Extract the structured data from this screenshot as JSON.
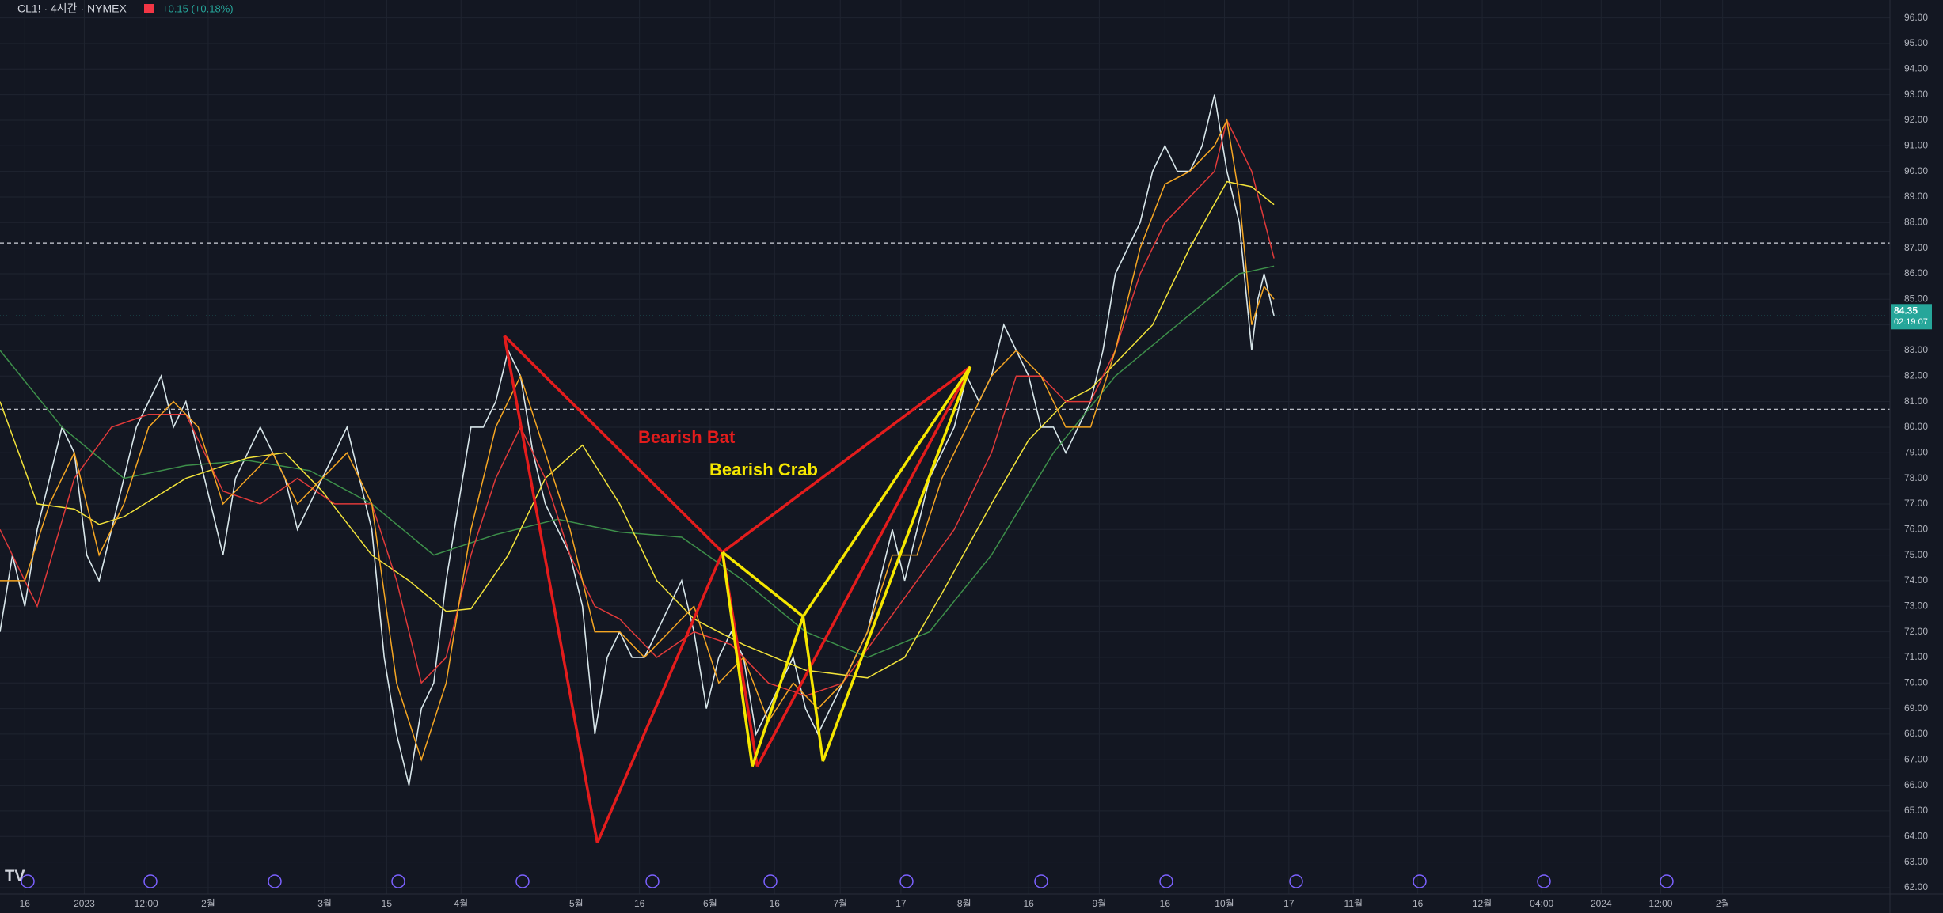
{
  "chart_data": {
    "type": "line",
    "header": {
      "symbol": "CL1! · 4시간 · NYMEX",
      "change": "+0.15 (+0.18%)"
    },
    "last_price": {
      "value": 84.35,
      "label": "84.35",
      "countdown": "02:19:07"
    },
    "ylim": [
      61.75,
      96.7
    ],
    "xlim": [
      0,
      1525
    ],
    "yticks": [
      {
        "value": 62,
        "label": "62.00"
      },
      {
        "value": 63,
        "label": "63.00"
      },
      {
        "value": 64,
        "label": "64.00"
      },
      {
        "value": 65,
        "label": "65.00"
      },
      {
        "value": 66,
        "label": "66.00"
      },
      {
        "value": 67,
        "label": "67.00"
      },
      {
        "value": 68,
        "label": "68.00"
      },
      {
        "value": 69,
        "label": "69.00"
      },
      {
        "value": 70,
        "label": "70.00"
      },
      {
        "value": 71,
        "label": "71.00"
      },
      {
        "value": 72,
        "label": "72.00"
      },
      {
        "value": 73,
        "label": "73.00"
      },
      {
        "value": 74,
        "label": "74.00"
      },
      {
        "value": 75,
        "label": "75.00"
      },
      {
        "value": 76,
        "label": "76.00"
      },
      {
        "value": 77,
        "label": "77.00"
      },
      {
        "value": 78,
        "label": "78.00"
      },
      {
        "value": 79,
        "label": "79.00"
      },
      {
        "value": 80,
        "label": "80.00"
      },
      {
        "value": 81,
        "label": "81.00"
      },
      {
        "value": 82,
        "label": "82.00"
      },
      {
        "value": 83,
        "label": "83.00"
      },
      {
        "value": 84,
        "label": "84.00"
      },
      {
        "value": 85,
        "label": "85.00"
      },
      {
        "value": 86,
        "label": "86.00"
      },
      {
        "value": 87,
        "label": "87.00"
      },
      {
        "value": 88,
        "label": "88.00"
      },
      {
        "value": 89,
        "label": "89.00"
      },
      {
        "value": 90,
        "label": "90.00"
      },
      {
        "value": 91,
        "label": "91.00"
      },
      {
        "value": 92,
        "label": "92.00"
      },
      {
        "value": 93,
        "label": "93.00"
      },
      {
        "value": 94,
        "label": "94.00"
      },
      {
        "value": 95,
        "label": "95.00"
      },
      {
        "value": 96,
        "label": "96.00"
      }
    ],
    "xticks": [
      {
        "value": 20,
        "label": "16"
      },
      {
        "value": 68,
        "label": "2023"
      },
      {
        "value": 118,
        "label": "12:00"
      },
      {
        "value": 168,
        "label": "2월"
      },
      {
        "value": 262,
        "label": "3월"
      },
      {
        "value": 312,
        "label": "15"
      },
      {
        "value": 372,
        "label": "4월"
      },
      {
        "value": 465,
        "label": "5월"
      },
      {
        "value": 516,
        "label": "16"
      },
      {
        "value": 573,
        "label": "6월"
      },
      {
        "value": 625,
        "label": "16"
      },
      {
        "value": 678,
        "label": "7월"
      },
      {
        "value": 727,
        "label": "17"
      },
      {
        "value": 778,
        "label": "8월"
      },
      {
        "value": 830,
        "label": "16"
      },
      {
        "value": 887,
        "label": "9월"
      },
      {
        "value": 940,
        "label": "16"
      },
      {
        "value": 988,
        "label": "10월"
      },
      {
        "value": 1040,
        "label": "17"
      },
      {
        "value": 1092,
        "label": "11월"
      },
      {
        "value": 1144,
        "label": "16"
      },
      {
        "value": 1196,
        "label": "12월"
      },
      {
        "value": 1244,
        "label": "04:00"
      },
      {
        "value": 1292,
        "label": "2024"
      },
      {
        "value": 1340,
        "label": "12:00"
      },
      {
        "value": 1390,
        "label": "2월"
      }
    ],
    "hlines": [
      87.2,
      80.7
    ],
    "grid": true,
    "series": [
      {
        "name": "price",
        "color": "#d8e6ea",
        "x": [
          0,
          10,
          20,
          30,
          40,
          50,
          60,
          70,
          80,
          90,
          100,
          110,
          120,
          130,
          140,
          150,
          160,
          170,
          180,
          190,
          200,
          210,
          220,
          230,
          240,
          250,
          260,
          270,
          280,
          290,
          300,
          310,
          320,
          330,
          340,
          350,
          360,
          370,
          380,
          390,
          400,
          410,
          420,
          430,
          440,
          450,
          460,
          470,
          480,
          490,
          500,
          510,
          520,
          530,
          540,
          550,
          560,
          570,
          580,
          590,
          600,
          610,
          620,
          630,
          640,
          650,
          660,
          670,
          680,
          690,
          700,
          710,
          720,
          730,
          740,
          750,
          760,
          770,
          780,
          790,
          800,
          810,
          820,
          830,
          840,
          850,
          860,
          870,
          880,
          890,
          900,
          910,
          920,
          930,
          940,
          950,
          960,
          970,
          980,
          990,
          1000,
          1010,
          1015,
          1020,
          1028
        ],
        "values": [
          72,
          75,
          73,
          76,
          78,
          80,
          79,
          75,
          74,
          76,
          78,
          80,
          81,
          82,
          80,
          81,
          79,
          77,
          75,
          78,
          79,
          80,
          79,
          78,
          76,
          77,
          78,
          79,
          80,
          78,
          76,
          71,
          68,
          66,
          69,
          70,
          74,
          77,
          80,
          80,
          81,
          83,
          82,
          79,
          77,
          76,
          75,
          73,
          68,
          71,
          72,
          71,
          71,
          72,
          73,
          74,
          72,
          69,
          71,
          72,
          71,
          68,
          69,
          70,
          71,
          69,
          68,
          69,
          70,
          71,
          72,
          74,
          76,
          74,
          76,
          78,
          79,
          80,
          82,
          81,
          82,
          84,
          83,
          82,
          80,
          80,
          79,
          80,
          81,
          83,
          86,
          87,
          88,
          90,
          91,
          90,
          90,
          91,
          93,
          90,
          88,
          83,
          85,
          86,
          84.35
        ]
      },
      {
        "name": "ma-slow",
        "color": "#3d8f4a",
        "x": [
          0,
          50,
          100,
          150,
          200,
          250,
          300,
          350,
          400,
          450,
          500,
          550,
          600,
          650,
          700,
          750,
          800,
          850,
          900,
          950,
          1000,
          1028
        ],
        "values": [
          83,
          80,
          78,
          78.5,
          78.7,
          78.3,
          77,
          75,
          75.8,
          76.4,
          75.9,
          75.7,
          74,
          72,
          71,
          72,
          75,
          79,
          82,
          84,
          86,
          86.3
        ]
      },
      {
        "name": "ma-mid",
        "color": "#f2e33a",
        "x": [
          0,
          30,
          60,
          80,
          100,
          150,
          200,
          230,
          260,
          300,
          330,
          360,
          380,
          410,
          440,
          470,
          500,
          530,
          560,
          600,
          650,
          700,
          730,
          760,
          800,
          830,
          860,
          880,
          900,
          930,
          960,
          990,
          1010,
          1028
        ],
        "values": [
          81,
          77,
          76.8,
          76.2,
          76.5,
          78,
          78.8,
          79,
          77.5,
          75,
          74,
          72.8,
          72.9,
          75,
          78,
          79.3,
          77,
          74,
          72.5,
          71.5,
          70.5,
          70.2,
          71,
          73.5,
          77,
          79.5,
          81,
          81.5,
          82.5,
          84,
          87,
          89.6,
          89.4,
          88.7
        ]
      },
      {
        "name": "ma-fast",
        "color": "#e03a3a",
        "x": [
          0,
          30,
          60,
          90,
          120,
          150,
          180,
          210,
          240,
          270,
          300,
          320,
          340,
          360,
          380,
          400,
          420,
          440,
          460,
          480,
          500,
          530,
          560,
          590,
          620,
          650,
          680,
          710,
          740,
          770,
          800,
          820,
          840,
          860,
          880,
          900,
          920,
          940,
          960,
          980,
          990,
          1010,
          1028
        ],
        "values": [
          76,
          73,
          78,
          80,
          80.5,
          80.5,
          77.5,
          77,
          78,
          77,
          77,
          74,
          70,
          71,
          75,
          78,
          80,
          78,
          75,
          73,
          72.5,
          71,
          72,
          71.5,
          70,
          69.5,
          70,
          72,
          74,
          76,
          79,
          82,
          82,
          81,
          81,
          83,
          86,
          88,
          89,
          90,
          92,
          90,
          86.6
        ]
      },
      {
        "name": "ma-short",
        "color": "#f5a623",
        "x": [
          0,
          20,
          40,
          60,
          80,
          100,
          120,
          140,
          160,
          180,
          200,
          220,
          240,
          260,
          280,
          300,
          320,
          340,
          360,
          380,
          400,
          420,
          440,
          460,
          480,
          500,
          520,
          540,
          560,
          580,
          600,
          620,
          640,
          660,
          680,
          700,
          720,
          740,
          760,
          780,
          800,
          820,
          840,
          860,
          880,
          900,
          920,
          940,
          960,
          980,
          990,
          1000,
          1010,
          1020,
          1028
        ],
        "values": [
          74,
          74,
          77,
          79,
          75,
          77,
          80,
          81,
          80,
          77,
          78,
          79,
          77,
          78,
          79,
          77,
          70,
          67,
          70,
          76,
          80,
          82,
          79,
          76,
          72,
          72,
          71,
          72,
          73,
          70,
          71,
          68.5,
          70,
          69,
          70,
          72,
          75,
          75,
          78,
          80,
          82,
          83,
          82,
          80,
          80,
          83,
          87,
          89.5,
          90,
          91,
          92,
          89,
          84,
          85.5,
          85
        ]
      }
    ],
    "patterns": [
      {
        "name": "Bearish Bat",
        "color": "#e31c1c",
        "x": [
          407,
          482,
          583,
          611,
          783
        ],
        "y": [
          83.57,
          63.75,
          75.11,
          66.74,
          82.36
        ]
      },
      {
        "name": "Bearish Crab",
        "color": "#f5e700",
        "x": [
          583,
          607,
          648,
          664,
          783
        ],
        "y": [
          75.11,
          66.74,
          72.6,
          66.94,
          82.36
        ]
      }
    ]
  }
}
